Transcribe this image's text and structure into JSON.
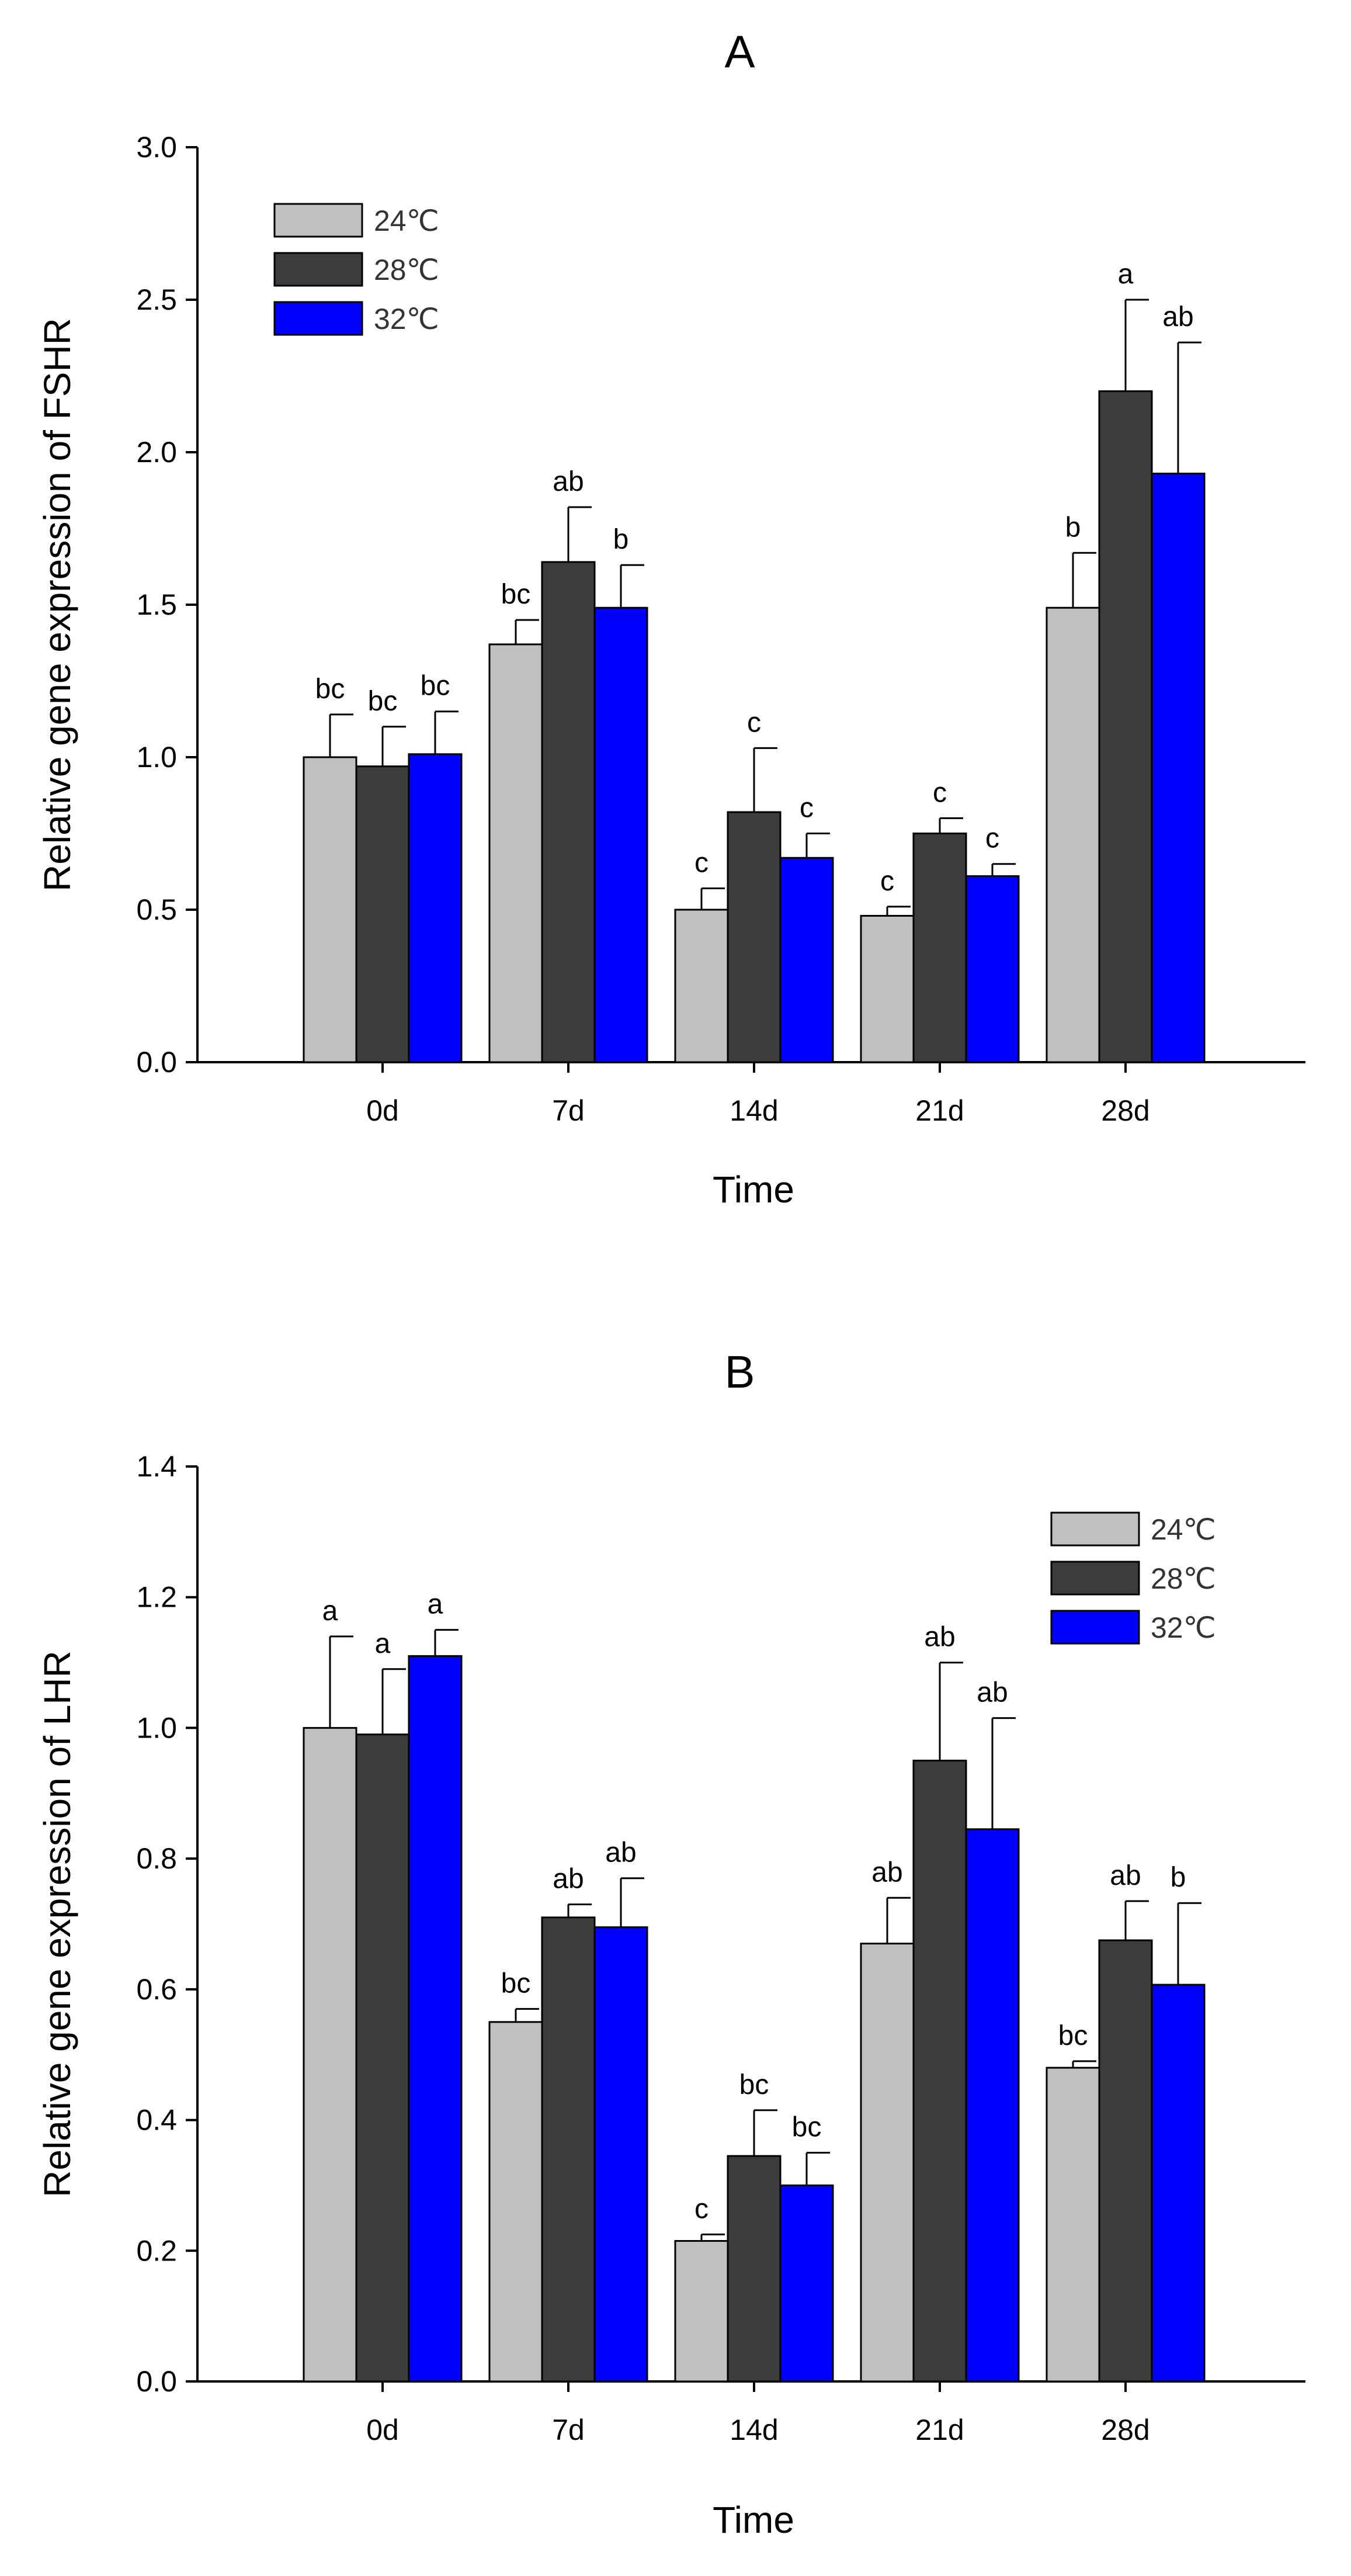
{
  "chart_data": [
    {
      "type": "bar",
      "title": "A",
      "xlabel": "Time",
      "ylabel": "Relative gene expression of FSHR",
      "categories": [
        "0d",
        "7d",
        "14d",
        "21d",
        "28d"
      ],
      "ylim": [
        0,
        3.0
      ],
      "yticks": [
        "0.0",
        "0.5",
        "1.0",
        "1.5",
        "2.0",
        "2.5",
        "3.0"
      ],
      "legend_position": "top-left",
      "series": [
        {
          "name": "24℃",
          "color": "#c0c0c0",
          "values": [
            1.0,
            1.37,
            0.5,
            0.48,
            1.49
          ],
          "errors": [
            0.14,
            0.08,
            0.07,
            0.03,
            0.18
          ],
          "labels": [
            "bc",
            "bc",
            "c",
            "c",
            "b"
          ]
        },
        {
          "name": "28℃",
          "color": "#3c3c3c",
          "values": [
            0.97,
            1.64,
            0.82,
            0.75,
            2.2
          ],
          "errors": [
            0.13,
            0.18,
            0.21,
            0.05,
            0.3
          ],
          "labels": [
            "bc",
            "ab",
            "c",
            "c",
            "a"
          ]
        },
        {
          "name": "32℃",
          "color": "#0000ff",
          "values": [
            1.01,
            1.49,
            0.67,
            0.61,
            1.93
          ],
          "errors": [
            0.14,
            0.14,
            0.08,
            0.04,
            0.43
          ],
          "labels": [
            "bc",
            "b",
            "c",
            "c",
            "ab"
          ]
        }
      ]
    },
    {
      "type": "bar",
      "title": "B",
      "xlabel": "Time",
      "ylabel": "Relative gene expression of LHR",
      "categories": [
        "0d",
        "7d",
        "14d",
        "21d",
        "28d"
      ],
      "ylim": [
        0,
        1.4
      ],
      "yticks": [
        "0.0",
        "0.2",
        "0.4",
        "0.6",
        "0.8",
        "1.0",
        "1.2",
        "1.4"
      ],
      "legend_position": "top-right",
      "series": [
        {
          "name": "24℃",
          "color": "#c0c0c0",
          "values": [
            1.0,
            0.55,
            0.215,
            0.67,
            0.48
          ],
          "errors": [
            0.14,
            0.02,
            0.01,
            0.07,
            0.01
          ],
          "labels": [
            "a",
            "bc",
            "c",
            "ab",
            "bc"
          ]
        },
        {
          "name": "28℃",
          "color": "#3c3c3c",
          "values": [
            0.99,
            0.71,
            0.345,
            0.95,
            0.675
          ],
          "errors": [
            0.1,
            0.02,
            0.07,
            0.15,
            0.06
          ],
          "labels": [
            "a",
            "ab",
            "bc",
            "ab",
            "ab"
          ]
        },
        {
          "name": "32℃",
          "color": "#0000ff",
          "values": [
            1.11,
            0.695,
            0.3,
            0.845,
            0.607
          ],
          "errors": [
            0.04,
            0.075,
            0.05,
            0.17,
            0.125
          ],
          "labels": [
            "a",
            "ab",
            "bc",
            "ab",
            "b"
          ]
        }
      ]
    }
  ]
}
